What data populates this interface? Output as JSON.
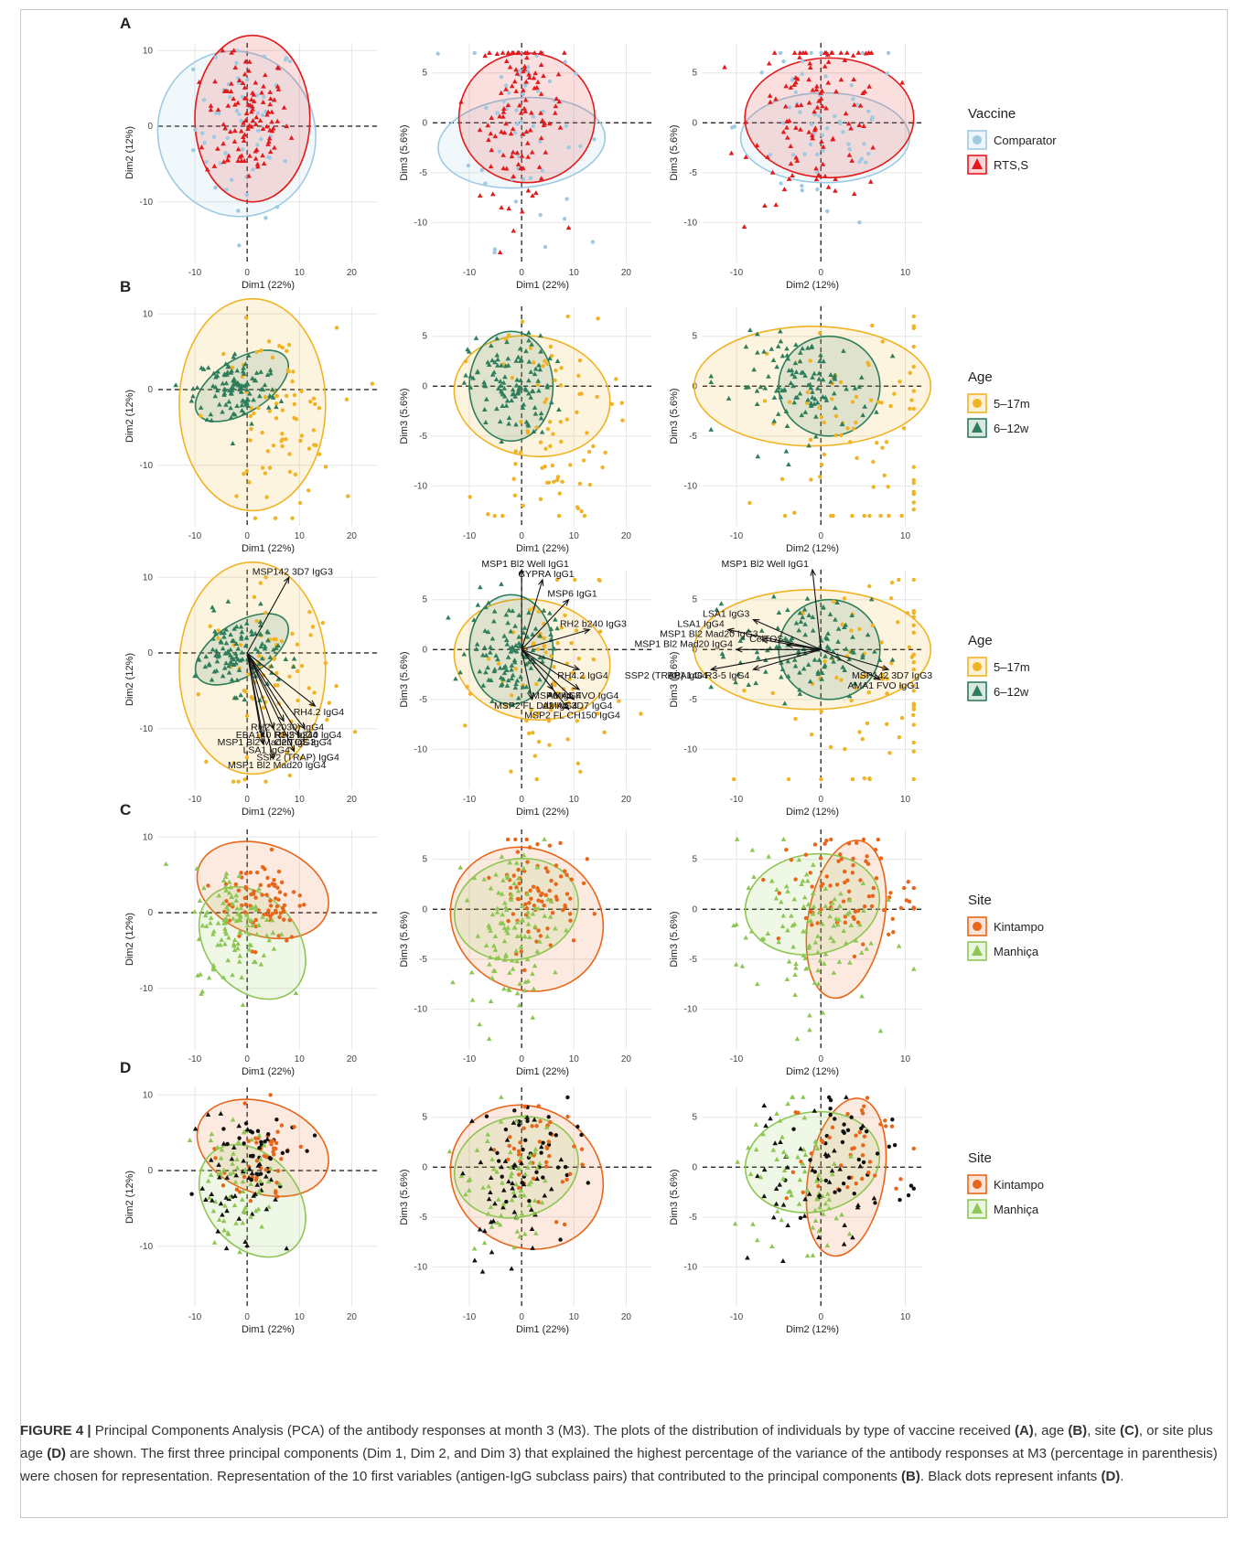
{
  "figure": {
    "caption_label": "FIGURE 4 | ",
    "caption_parts": [
      {
        "t": "Principal Components Analysis (PCA) of the antibody responses at month 3 (M3). The plots of the distribution of individuals by type of vaccine received ",
        "b": false
      },
      {
        "t": "(A)",
        "b": true
      },
      {
        "t": ", age ",
        "b": false
      },
      {
        "t": "(B)",
        "b": true
      },
      {
        "t": ", site ",
        "b": false
      },
      {
        "t": "(C)",
        "b": true
      },
      {
        "t": ", or site plus age ",
        "b": false
      },
      {
        "t": "(D)",
        "b": true
      },
      {
        "t": " are shown. The first three principal components (Dim 1, Dim 2, and Dim 3) that explained the highest percentage of the variance of the antibody responses at M3 (percentage in parenthesis) were chosen for representation. Representation of the 10 first variables (antigen-IgG subclass pairs) that contributed to the principal components ",
        "b": false
      },
      {
        "t": "(B)",
        "b": true
      },
      {
        "t": ". Black dots represent infants ",
        "b": false
      },
      {
        "t": "(D)",
        "b": true
      },
      {
        "t": ".",
        "b": false
      }
    ]
  },
  "chart_data": [
    {
      "type": "scatter",
      "panel": "A",
      "rows": [
        {
          "xlabel": "Dim1 (22%)",
          "ylabel": "Dim2 (12%)",
          "xticks": [
            -10,
            0,
            10,
            20
          ],
          "yticks": [
            -10,
            0,
            10
          ],
          "xlim": [
            -17,
            25
          ],
          "ylim": [
            -18,
            11
          ]
        },
        {
          "xlabel": "Dim1 (22%)",
          "ylabel": "Dim3 (5.6%)",
          "xticks": [
            -10,
            0,
            10,
            20
          ],
          "yticks": [
            -10,
            -5,
            0,
            5
          ],
          "xlim": [
            -17,
            25
          ],
          "ylim": [
            -14,
            8
          ]
        },
        {
          "xlabel": "Dim2 (12%)",
          "ylabel": "Dim3 (5.6%)",
          "xticks": [
            -10,
            0,
            10
          ],
          "yticks": [
            -10,
            -5,
            0,
            5
          ],
          "xlim": [
            -14,
            12
          ],
          "ylim": [
            -14,
            8
          ]
        }
      ],
      "legend": {
        "title": "Vaccine",
        "position": "right",
        "entries": [
          {
            "label": "Comparator",
            "color": "#9ecae1",
            "shape": "circle"
          },
          {
            "label": "RTS,S",
            "color": "#e31a1c",
            "shape": "triangle"
          }
        ]
      }
    },
    {
      "type": "scatter",
      "panel": "B",
      "rows": [
        {
          "xlabel": "Dim1 (22%)",
          "ylabel": "Dim2 (12%)",
          "xticks": [
            -10,
            0,
            10,
            20
          ],
          "yticks": [
            -10,
            0,
            10
          ],
          "xlim": [
            -17,
            25
          ],
          "ylim": [
            -18,
            11
          ]
        },
        {
          "xlabel": "Dim1 (22%)",
          "ylabel": "Dim3 (5.6%)",
          "xticks": [
            -10,
            0,
            10,
            20
          ],
          "yticks": [
            -10,
            -5,
            0,
            5
          ],
          "xlim": [
            -17,
            25
          ],
          "ylim": [
            -14,
            8
          ]
        },
        {
          "xlabel": "Dim2 (12%)",
          "ylabel": "Dim3 (5.6%)",
          "xticks": [
            -10,
            0,
            10
          ],
          "yticks": [
            -10,
            -5,
            0,
            5
          ],
          "xlim": [
            -14,
            12
          ],
          "ylim": [
            -14,
            8
          ]
        }
      ],
      "legend": {
        "title": "Age",
        "position": "right",
        "entries": [
          {
            "label": "5–17m",
            "color": "#f0b323",
            "shape": "circle"
          },
          {
            "label": "6–12w",
            "color": "#2e7d5b",
            "shape": "triangle"
          }
        ]
      }
    },
    {
      "type": "scatter",
      "panel": "B-biplot",
      "rows": [
        {
          "xlabel": "Dim1 (22%)",
          "ylabel": "Dim2 (12%)",
          "xticks": [
            -10,
            0,
            10,
            20
          ],
          "yticks": [
            -10,
            0,
            10
          ],
          "xlim": [
            -17,
            25
          ],
          "ylim": [
            -18,
            11
          ],
          "arrows": [
            {
              "label": "MSP142 3D7 IgG3",
              "x": 8,
              "y": 10
            },
            {
              "label": "RH4.2 IgG4",
              "x": 13,
              "y": -7
            },
            {
              "label": "RH2 (2030) IgG4",
              "x": 7,
              "y": -9
            },
            {
              "label": "EBA140 R3-5 IgG4",
              "x": 5,
              "y": -10
            },
            {
              "label": "RH2 b240 IgG4",
              "x": 11,
              "y": -10
            },
            {
              "label": "MSP1 Bl2 Mad20 IgG3",
              "x": 3,
              "y": -11
            },
            {
              "label": "CelTOS IgG4",
              "x": 10,
              "y": -11
            },
            {
              "label": "LSA1 IgG4",
              "x": 3,
              "y": -12
            },
            {
              "label": "SSP2 (TRAP) IgG4",
              "x": 9,
              "y": -13
            },
            {
              "label": "MSP1 Bl2 Mad20 IgG4",
              "x": 5,
              "y": -14
            }
          ]
        },
        {
          "xlabel": "Dim1 (22%)",
          "ylabel": "Dim3 (5.6%)",
          "xticks": [
            -10,
            0,
            10,
            20
          ],
          "yticks": [
            -10,
            -5,
            0,
            5
          ],
          "xlim": [
            -17,
            25
          ],
          "ylim": [
            -14,
            8
          ],
          "arrows": [
            {
              "label": "MSP1 Bl2 Well IgG1",
              "x": 0,
              "y": 8
            },
            {
              "label": "CYPRA IgG1",
              "x": 4,
              "y": 7
            },
            {
              "label": "MSP6 IgG1",
              "x": 9,
              "y": 5
            },
            {
              "label": "RH2 b240 IgG3",
              "x": 13,
              "y": 2
            },
            {
              "label": "RH4.2 IgG4",
              "x": 11,
              "y": -2
            },
            {
              "label": "AMA1 FVO IgG4",
              "x": 11,
              "y": -4
            },
            {
              "label": "MSP6 IgG4",
              "x": 6,
              "y": -4
            },
            {
              "label": "AMA1 3D7 IgG4",
              "x": 10,
              "y": -5
            },
            {
              "label": "MSP2 FL Dd2 IgG4",
              "x": 2,
              "y": -5
            },
            {
              "label": "MSP2 FL CH150 IgG4",
              "x": 9,
              "y": -6
            }
          ]
        },
        {
          "xlabel": "Dim2 (12%)",
          "ylabel": "Dim3 (5.6%)",
          "xticks": [
            -10,
            0,
            10
          ],
          "yticks": [
            -10,
            -5,
            0,
            5
          ],
          "xlim": [
            -14,
            12
          ],
          "ylim": [
            -14,
            8
          ],
          "arrows": [
            {
              "label": "MSP1 Bl2 Well IgG1",
              "x": -1,
              "y": 8
            },
            {
              "label": "LSA1 IgG3",
              "x": -8,
              "y": 3
            },
            {
              "label": "LSA1 IgG4",
              "x": -11,
              "y": 2
            },
            {
              "label": "MSP1 Bl2 Mad20 IgG3",
              "x": -7,
              "y": 1
            },
            {
              "label": "CelTOS",
              "x": -4,
              "y": 0.5
            },
            {
              "label": "MSP1 Bl2 Mad20 IgG4",
              "x": -10,
              "y": 0
            },
            {
              "label": "SSP2 (TRAP) IgG4",
              "x": -13,
              "y": -2
            },
            {
              "label": "EBA140 R3-5 IgG4",
              "x": -8,
              "y": -2
            },
            {
              "label": "MSP142 3D7 IgG3",
              "x": 8,
              "y": -2
            },
            {
              "label": "AMA1 FVO IgG1",
              "x": 7,
              "y": -3
            }
          ]
        }
      ],
      "legend": {
        "title": "Age",
        "position": "right",
        "entries": [
          {
            "label": "5–17m",
            "color": "#f0b323",
            "shape": "circle"
          },
          {
            "label": "6–12w",
            "color": "#2e7d5b",
            "shape": "triangle"
          }
        ]
      }
    },
    {
      "type": "scatter",
      "panel": "C",
      "rows": [
        {
          "xlabel": "Dim1 (22%)",
          "ylabel": "Dim2 (12%)",
          "xticks": [
            -10,
            0,
            10,
            20
          ],
          "yticks": [
            -10,
            0,
            10
          ],
          "xlim": [
            -17,
            25
          ],
          "ylim": [
            -18,
            11
          ]
        },
        {
          "xlabel": "Dim1 (22%)",
          "ylabel": "Dim3 (5.6%)",
          "xticks": [
            -10,
            0,
            10,
            20
          ],
          "yticks": [
            -10,
            -5,
            0,
            5
          ],
          "xlim": [
            -17,
            25
          ],
          "ylim": [
            -14,
            8
          ]
        },
        {
          "xlabel": "Dim2 (12%)",
          "ylabel": "Dim3 (5.6%)",
          "xticks": [
            -10,
            0,
            10
          ],
          "yticks": [
            -10,
            -5,
            0,
            5
          ],
          "xlim": [
            -14,
            12
          ],
          "ylim": [
            -14,
            8
          ]
        }
      ],
      "legend": {
        "title": "Site",
        "position": "right",
        "entries": [
          {
            "label": "Kintampo",
            "color": "#e8661a",
            "shape": "circle"
          },
          {
            "label": "Manhiça",
            "color": "#8dc653",
            "shape": "triangle"
          }
        ]
      }
    },
    {
      "type": "scatter",
      "panel": "D",
      "rows": [
        {
          "xlabel": "Dim1 (22%)",
          "ylabel": "Dim2 (12%)",
          "xticks": [
            -10,
            0,
            10,
            20
          ],
          "yticks": [
            -10,
            0,
            10
          ],
          "xlim": [
            -17,
            25
          ],
          "ylim": [
            -18,
            11
          ]
        },
        {
          "xlabel": "Dim1 (22%)",
          "ylabel": "Dim3 (5.6%)",
          "xticks": [
            -10,
            0,
            10,
            20
          ],
          "yticks": [
            -10,
            -5,
            0,
            5
          ],
          "xlim": [
            -17,
            25
          ],
          "ylim": [
            -14,
            8
          ]
        },
        {
          "xlabel": "Dim2 (12%)",
          "ylabel": "Dim3 (5.6%)",
          "xticks": [
            -10,
            0,
            10
          ],
          "yticks": [
            -10,
            -5,
            0,
            5
          ],
          "xlim": [
            -14,
            12
          ],
          "ylim": [
            -14,
            8
          ]
        }
      ],
      "legend": {
        "title": "Site",
        "position": "right",
        "entries": [
          {
            "label": "Kintampo",
            "color": "#e8661a",
            "shape": "circle"
          },
          {
            "label": "Manhiça",
            "color": "#8dc653",
            "shape": "triangle"
          }
        ]
      }
    }
  ]
}
